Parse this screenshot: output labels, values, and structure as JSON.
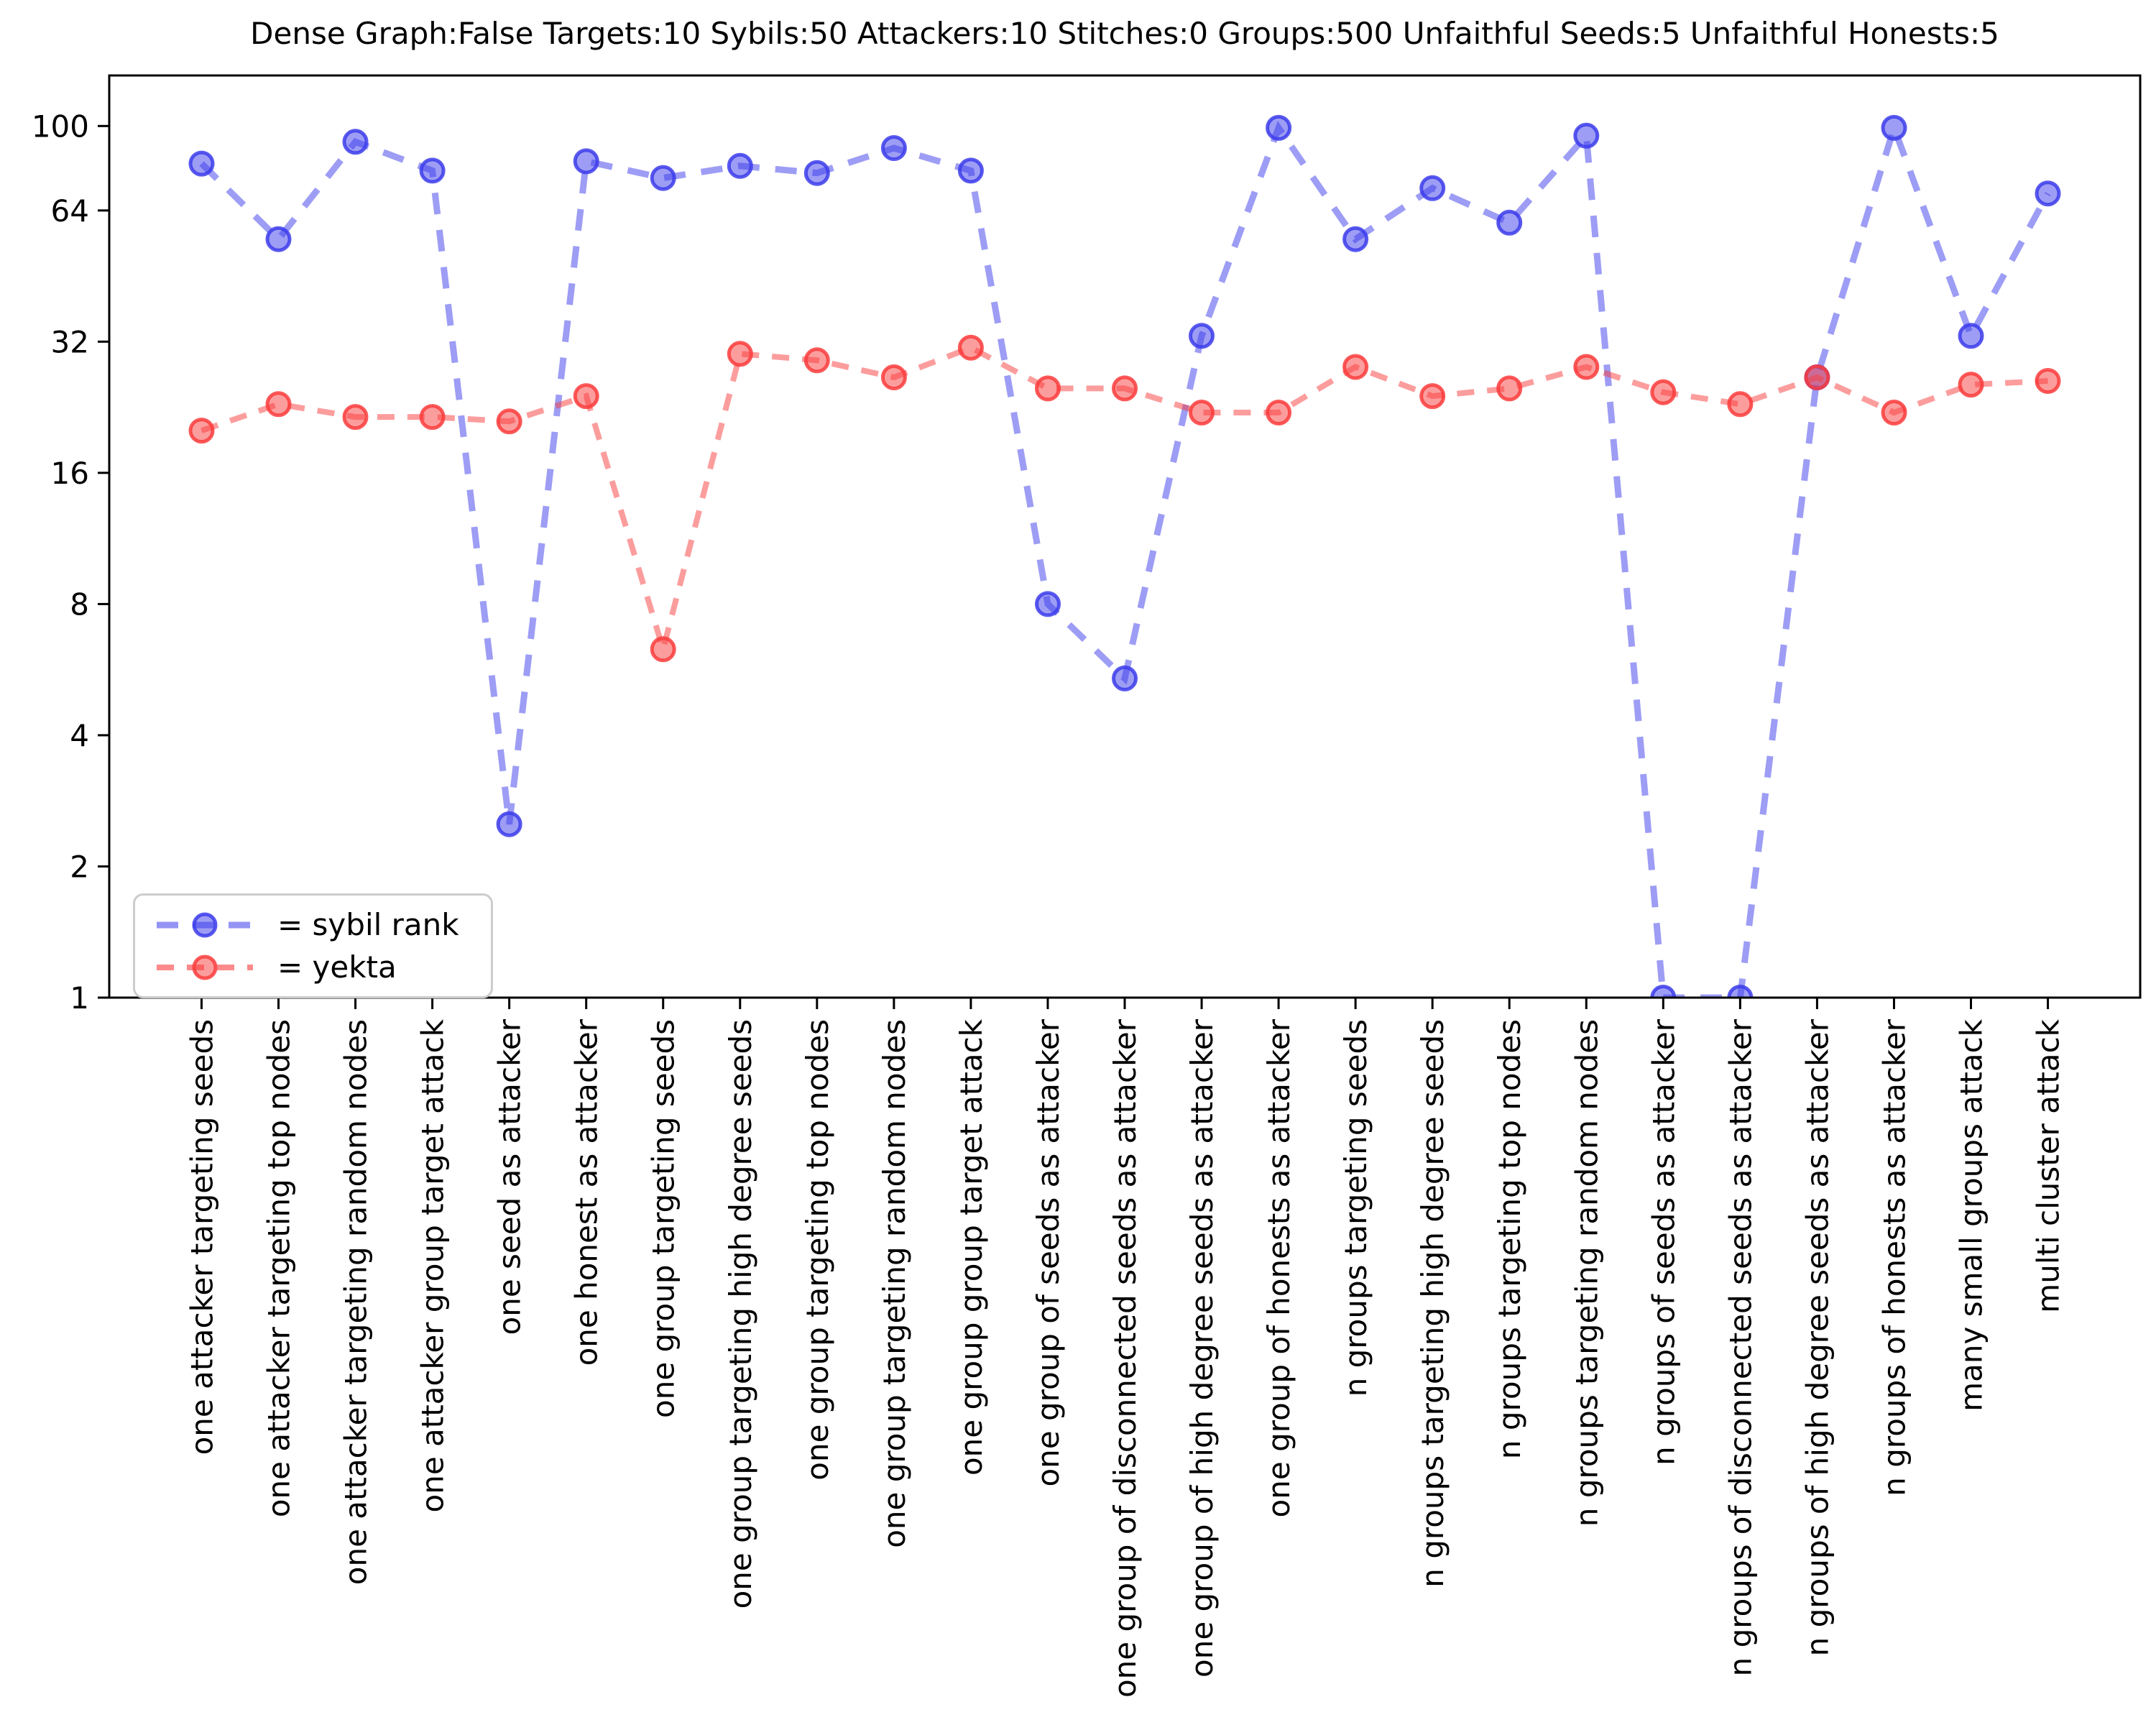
{
  "title": "Dense Graph:False Targets:10 Sybils:50 Attackers:10 Stitches:0 Groups:500 Unfaithful Seeds:5 Unfaithful Honests:5",
  "legend": {
    "position": "lower left",
    "entries": [
      {
        "label": "= sybil rank",
        "series": "sybil rank",
        "color": "#3c3ceb"
      },
      {
        "label": "= yekta",
        "series": "yekta",
        "color": "#fa3c3c"
      }
    ]
  },
  "chart_data": {
    "type": "line",
    "title": "Dense Graph:False Targets:10 Sybils:50 Attackers:10 Stitches:0 Groups:500 Unfaithful Seeds:5 Unfaithful Honests:5",
    "xlabel": "",
    "ylabel": "",
    "grid": false,
    "yscale": "log2",
    "ylim": [
      1,
      130.6
    ],
    "yticks": [
      100,
      64,
      32,
      16,
      8,
      4,
      2,
      1
    ],
    "x_tick_rotation": 90,
    "legend_position": "lower left",
    "line_style": "dashed",
    "marker": "circle",
    "x_categories": [
      "one attacker targeting seeds",
      "one attacker targeting top nodes",
      "one attacker targeting random nodes",
      "one attacker group target attack",
      "one seed as attacker",
      "one honest as attacker",
      "one group targeting seeds",
      "one group targeting high degree seeds",
      "one group targeting top nodes",
      "one group targeting random nodes",
      "one group group target attack",
      "one group of seeds as attacker",
      "one group of disconnected seeds as attacker",
      "one group of high degree seeds as attacker",
      "one group of honests as attacker",
      "n groups targeting seeds",
      "n groups targeting high degree seeds",
      "n groups targeting top nodes",
      "n groups targeting random nodes",
      "n groups of seeds as attacker",
      "n groups of disconnected seeds as attacker",
      "n groups of high degree seeds as attacker",
      "n groups of honests as attacker",
      "many small groups attack",
      "multi cluster attack"
    ],
    "series": [
      {
        "name": "sybil rank",
        "color": "#3c3ceb",
        "line_style": "dashed",
        "marker": "circle",
        "values": [
          82,
          55,
          92,
          79,
          2.5,
          83,
          76,
          81,
          78,
          89,
          79,
          8,
          5.4,
          33,
          99,
          55,
          72,
          60,
          95,
          1,
          1,
          26.5,
          99,
          33,
          70
        ]
      },
      {
        "name": "yekta",
        "color": "#fa3c3c",
        "line_style": "dashed",
        "marker": "circle",
        "values": [
          20,
          23,
          21.5,
          21.5,
          21,
          24,
          6.3,
          30,
          29,
          26.5,
          31,
          25,
          25,
          22,
          22,
          28,
          24,
          25,
          28,
          24.5,
          23,
          26.5,
          22,
          25.5,
          26
        ]
      }
    ]
  }
}
